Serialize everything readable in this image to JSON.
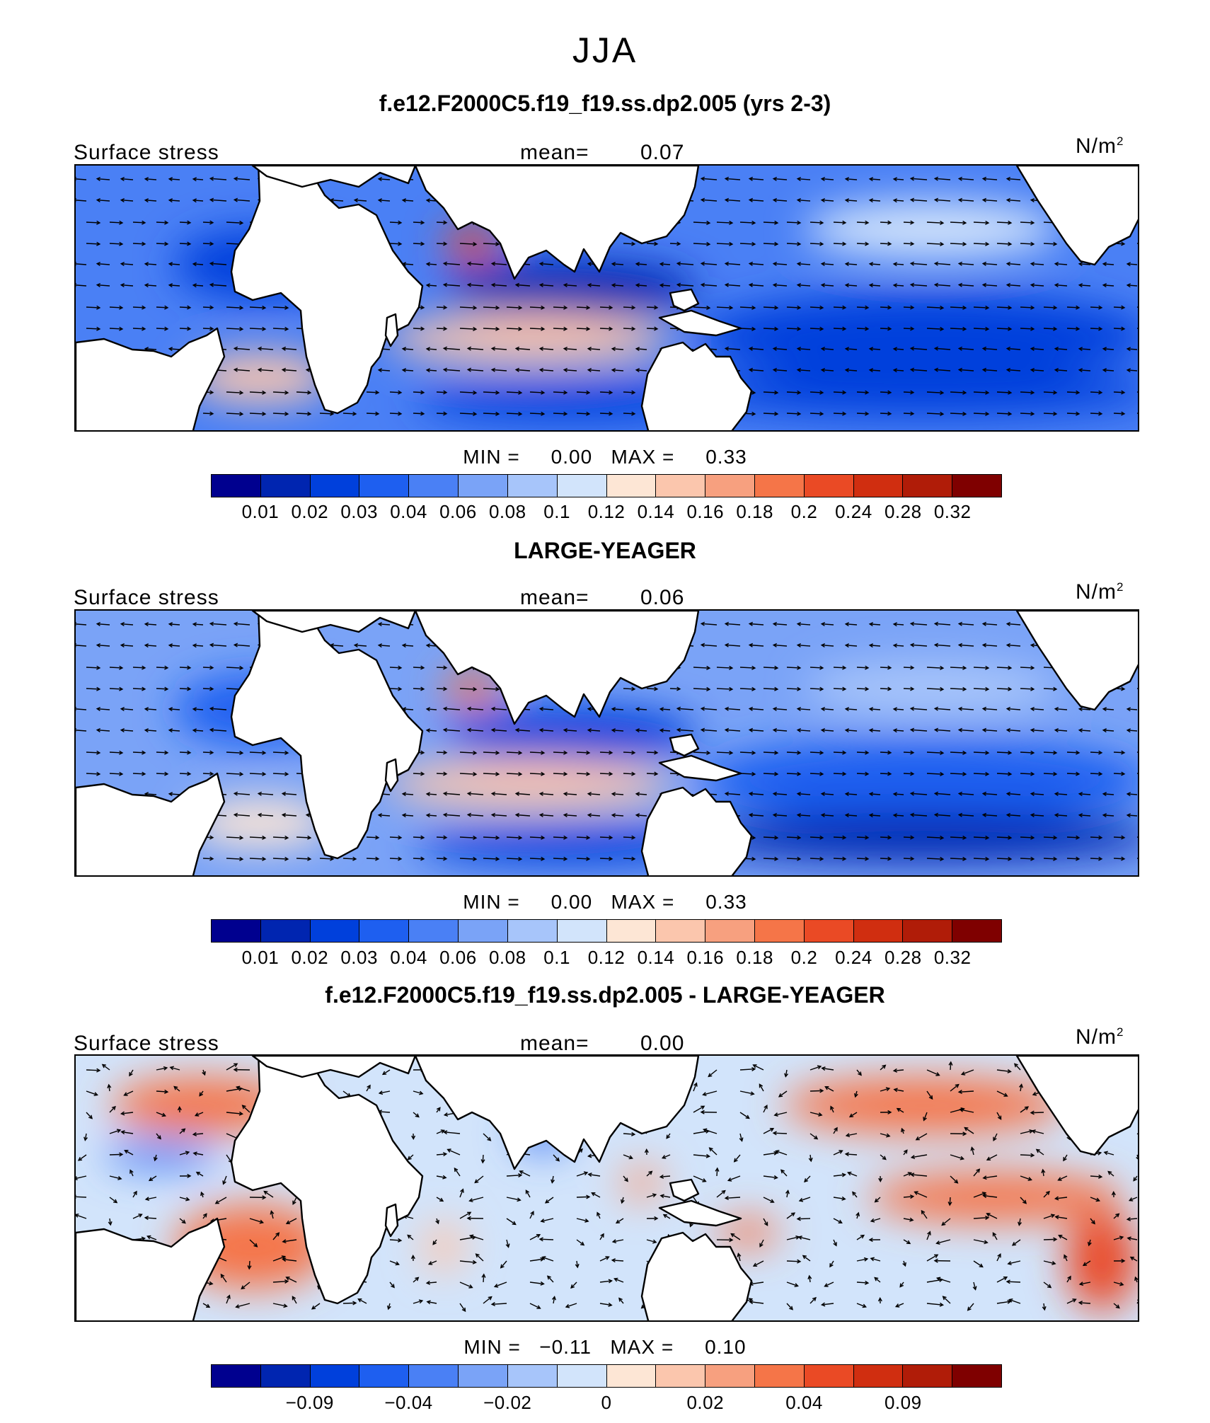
{
  "figure": {
    "season": "JJA",
    "colors": [
      "#00008f",
      "#0025b0",
      "#0040dc",
      "#1e5ff0",
      "#4a80f5",
      "#7aa3f7",
      "#a7c5fa",
      "#d2e4fb",
      "#fde6d5",
      "#fbc6ad",
      "#f7a07f",
      "#f57548",
      "#ea4a25",
      "#d02e10",
      "#b01c08",
      "#7f0000"
    ]
  },
  "panels": [
    {
      "title": "f.e12.F2000C5.f19_f19.ss.dp2.005 (yrs 2-3)",
      "variable": "Surface stress",
      "mean_label": "mean=",
      "mean_value": "0.07",
      "units_base": "N/m",
      "units_exp": "2",
      "min_label": "MIN =",
      "min_value": "0.00",
      "max_label": "MAX =",
      "max_value": "0.33",
      "colorbar_ticks": [
        "0.01",
        "0.02",
        "0.03",
        "0.04",
        "0.06",
        "0.08",
        "0.1",
        "0.12",
        "0.14",
        "0.16",
        "0.18",
        "0.2",
        "0.24",
        "0.28",
        "0.32"
      ],
      "kind": "abs"
    },
    {
      "title": "LARGE-YEAGER",
      "variable": "Surface stress",
      "mean_label": "mean=",
      "mean_value": "0.06",
      "units_base": "N/m",
      "units_exp": "2",
      "min_label": "MIN =",
      "min_value": "0.00",
      "max_label": "MAX =",
      "max_value": "0.33",
      "colorbar_ticks": [
        "0.01",
        "0.02",
        "0.03",
        "0.04",
        "0.06",
        "0.08",
        "0.1",
        "0.12",
        "0.14",
        "0.16",
        "0.18",
        "0.2",
        "0.24",
        "0.28",
        "0.32"
      ],
      "kind": "abs"
    },
    {
      "title": "f.e12.F2000C5.f19_f19.ss.dp2.005 - LARGE-YEAGER",
      "variable": "Surface stress",
      "mean_label": "mean=",
      "mean_value": "0.00",
      "units_base": "N/m",
      "units_exp": "2",
      "min_label": "MIN =",
      "min_value": "−0.11",
      "max_label": "MAX =",
      "max_value": "0.10",
      "colorbar_ticks": [
        "−0.09",
        "−0.04",
        "−0.02",
        "0",
        "0.02",
        "0.04",
        "0.09"
      ],
      "kind": "diff"
    }
  ]
}
